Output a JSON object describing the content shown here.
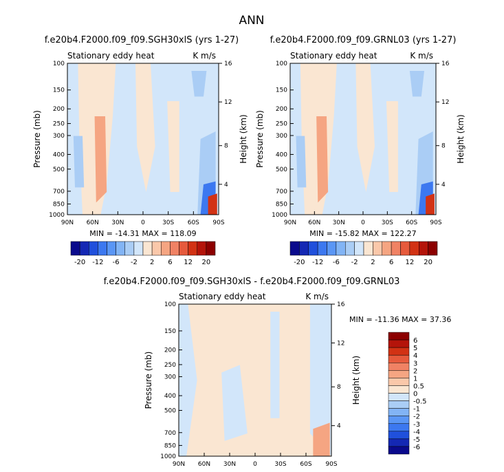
{
  "page_title": "ANN",
  "chart_data": [
    {
      "type": "heatmap",
      "title": "f.e20b4.F2000.f09_f09.SGH30xlS (yrs 1-27)",
      "subtitle_left": "Stationary eddy heat",
      "subtitle_right": "K m/s",
      "xlabel": "",
      "ylabel": "Pressure (mb)",
      "ylabel_right": "Height (km)",
      "x_ticks": [
        "90N",
        "60N",
        "30N",
        "0",
        "30S",
        "60S",
        "90S"
      ],
      "y_ticks": [
        "100",
        "150",
        "200",
        "250",
        "300",
        "400",
        "500",
        "700",
        "850",
        "1000"
      ],
      "y_right_ticks": [
        "16",
        "12",
        "8",
        "4"
      ],
      "ylim": [
        1000,
        100
      ],
      "min_max": "MIN = -14.31   MAX = 118.09",
      "colorbar_labels": [
        "-20",
        "-12",
        "-6",
        "-2",
        "2",
        "6",
        "12",
        "20"
      ]
    },
    {
      "type": "heatmap",
      "title": "f.e20b4.F2000.f09_f09.GRNL03 (yrs 1-27)",
      "subtitle_left": "Stationary eddy heat",
      "subtitle_right": "K m/s",
      "xlabel": "",
      "ylabel": "Pressure (mb)",
      "ylabel_right": "Height (km)",
      "x_ticks": [
        "90N",
        "60N",
        "30N",
        "0",
        "30S",
        "60S",
        "90S"
      ],
      "y_ticks": [
        "100",
        "150",
        "200",
        "250",
        "300",
        "400",
        "500",
        "700",
        "850",
        "1000"
      ],
      "y_right_ticks": [
        "16",
        "12",
        "8",
        "4"
      ],
      "ylim": [
        1000,
        100
      ],
      "min_max": "MIN = -15.82   MAX = 122.27",
      "colorbar_labels": [
        "-20",
        "-12",
        "-6",
        "-2",
        "2",
        "6",
        "12",
        "20"
      ]
    },
    {
      "type": "heatmap",
      "title": "f.e20b4.F2000.f09_f09.SGH30xlS - f.e20b4.F2000.f09_f09.GRNL03",
      "subtitle_left": "Stationary eddy heat",
      "subtitle_right": "K m/s",
      "xlabel": "",
      "ylabel": "Pressure (mb)",
      "ylabel_right": "Height (km)",
      "x_ticks": [
        "90N",
        "60N",
        "30N",
        "0",
        "30S",
        "60S",
        "90S"
      ],
      "y_ticks": [
        "100",
        "150",
        "200",
        "250",
        "300",
        "400",
        "500",
        "700",
        "850",
        "1000"
      ],
      "y_right_ticks": [
        "16",
        "12",
        "8",
        "4"
      ],
      "ylim": [
        1000,
        100
      ],
      "min_max": "MIN = -11.36   MAX =  37.36",
      "colorbar_labels": [
        "6",
        "5",
        "4",
        "3",
        "2",
        "1",
        "0.5",
        "0",
        "-0.5",
        "-1",
        "-2",
        "-3",
        "-4",
        "-5",
        "-6"
      ]
    }
  ],
  "colors": {
    "cbar16": [
      "#0a0a8c",
      "#1428b4",
      "#2050dc",
      "#3c78f0",
      "#5a96f5",
      "#82b4f5",
      "#aacdf5",
      "#d2e6fa",
      "#fae6d2",
      "#fac8aa",
      "#f5a582",
      "#f08264",
      "#e65a3c",
      "#d23214",
      "#b4140a",
      "#8c0000"
    ],
    "cbar_diff": [
      "#8c0000",
      "#b4140a",
      "#d23214",
      "#e65a3c",
      "#f08264",
      "#f5a582",
      "#fac8aa",
      "#fae6d2",
      "#d2e6fa",
      "#aacdf5",
      "#82b4f5",
      "#5a96f5",
      "#3c78f0",
      "#2050dc",
      "#1428b4",
      "#0a0a8c"
    ],
    "light_blue": "#d2e6fa",
    "light_red": "#fae6d2",
    "mid_red": "#f5a582",
    "mid_blue": "#aacdf5"
  }
}
